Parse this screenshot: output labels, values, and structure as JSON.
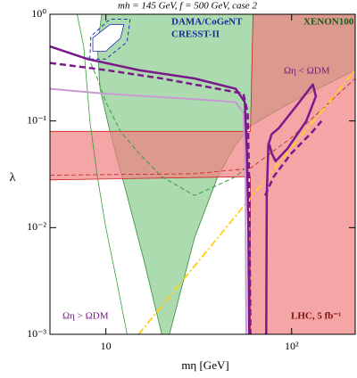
{
  "chart_data": {
    "type": "line",
    "title": "mh = 145 GeV, f = 500 GeV, case 2",
    "x_label": "mη [GeV]",
    "y_label": "λ",
    "log_x": true,
    "log_y": true,
    "xlim": [
      5,
      220
    ],
    "ylim": [
      0.001,
      1
    ],
    "xticks": [
      10,
      {
        "value": 100,
        "label": "10²"
      }
    ],
    "yticks": [
      {
        "value": 0.001,
        "label": "10⁻³"
      },
      {
        "value": 0.01,
        "label": "10⁻²"
      },
      {
        "value": 0.1,
        "label": "10⁻¹"
      },
      {
        "value": 1,
        "label": "10⁰"
      }
    ],
    "annotations": [
      "DAMA/CoGeNT",
      "CRESST-II",
      "XENON100",
      "Ωη < ΩDM",
      "Ωη > ΩDM",
      "LHC, 5 fb⁻¹"
    ],
    "series": [
      {
        "kind": "area",
        "color": "#8fcf94",
        "opacity": 0.75,
        "edge": "#3a8a3a",
        "x": [
          9.5,
          9.0,
          9.3,
          10.5,
          13,
          16,
          20,
          22,
          30,
          40,
          50,
          57,
          60,
          100,
          220,
          220,
          9.5
        ],
        "values": [
          1,
          0.5,
          0.2,
          0.08,
          0.02,
          0.005,
          0.001,
          0.001,
          0.008,
          0.03,
          0.06,
          0.08,
          0.09,
          0.15,
          0.3,
          1,
          1
        ]
      },
      {
        "kind": "area",
        "color": "#f07f7f",
        "opacity": 0.7,
        "edge": "#d02020",
        "x": [
          5,
          57,
          60,
          60,
          220,
          220,
          62,
          60,
          5
        ],
        "values": [
          0.028,
          0.03,
          0.03,
          0.001,
          0.001,
          1,
          1,
          0.08,
          0.08
        ]
      },
      {
        "kind": "area",
        "color": "#ffffff",
        "opacity": 1,
        "edge": "#2030c0",
        "x": [
          8.5,
          8.5,
          10.5,
          12.5,
          12,
          10,
          8.5
        ],
        "values": [
          0.45,
          0.6,
          0.8,
          0.8,
          0.6,
          0.45,
          0.45
        ]
      },
      {
        "kind": "line",
        "color": "#2030c0",
        "width": 1,
        "dash": "4 3",
        "x": [
          8.2,
          8.3,
          10.5,
          13.5,
          13,
          10,
          8.2
        ],
        "values": [
          0.38,
          0.62,
          0.9,
          0.9,
          0.55,
          0.38,
          0.38
        ]
      },
      {
        "kind": "line",
        "color": "#3a9a3a",
        "width": 0.8,
        "dash": "",
        "x": [
          7,
          7.6,
          8.2,
          9,
          10,
          11.5,
          13
        ],
        "values": [
          1,
          0.5,
          0.1,
          0.03,
          0.01,
          0.003,
          0.001
        ]
      },
      {
        "kind": "line",
        "color": "#3a9a3a",
        "width": 1,
        "dash": "5 3",
        "x": [
          8,
          9,
          10,
          12,
          15,
          20,
          30,
          40,
          50,
          60
        ],
        "values": [
          0.4,
          0.25,
          0.15,
          0.08,
          0.05,
          0.03,
          0.02,
          0.025,
          0.03,
          0.04
        ]
      },
      {
        "kind": "line",
        "color": "#c02020",
        "width": 0.8,
        "dash": "5 3",
        "x": [
          5,
          30,
          60,
          100,
          220
        ],
        "values": [
          0.031,
          0.032,
          0.036,
          0.07,
          0.25
        ]
      },
      {
        "kind": "line",
        "color": "#ffd020",
        "width": 2,
        "dash": "8 3 2 3",
        "x": [
          15,
          220
        ],
        "values": [
          0.001,
          0.3
        ]
      },
      {
        "kind": "line",
        "color": "#c89ad0",
        "width": 2,
        "dash": "",
        "x": [
          5,
          10,
          30,
          50,
          55,
          56.5,
          57
        ],
        "values": [
          0.2,
          0.18,
          0.16,
          0.15,
          0.12,
          0.03,
          0.001
        ]
      },
      {
        "kind": "line",
        "color": "#7a1a8a",
        "width": 2.5,
        "dash": "7 4",
        "x": [
          5,
          10,
          20,
          40,
          55,
          58,
          59,
          60
        ],
        "values": [
          0.35,
          0.3,
          0.25,
          0.2,
          0.18,
          0.12,
          0.03,
          0.001
        ]
      },
      {
        "kind": "line",
        "color": "#7a1a8a",
        "width": 2.5,
        "dash": "7 4",
        "x": [
          72,
          80,
          100,
          130,
          145
        ],
        "values": [
          0.02,
          0.03,
          0.05,
          0.08,
          0.1
        ]
      },
      {
        "kind": "line",
        "color": "#7a1a8a",
        "width": 2.5,
        "dash": "",
        "x": [
          5,
          8,
          15,
          30,
          50,
          56,
          57.5,
          58.5,
          59
        ],
        "values": [
          0.5,
          0.38,
          0.3,
          0.25,
          0.2,
          0.15,
          0.05,
          0.01,
          0.001
        ]
      },
      {
        "kind": "line",
        "color": "#7a1a8a",
        "width": 2.5,
        "dash": "",
        "x": [
          73,
          73.5,
          75,
          78,
          85,
          110,
          130,
          135,
          120,
          95,
          82,
          78,
          76
        ],
        "values": [
          0.001,
          0.02,
          0.06,
          0.075,
          0.085,
          0.15,
          0.22,
          0.17,
          0.1,
          0.055,
          0.042,
          0.05,
          0.06
        ]
      }
    ]
  }
}
